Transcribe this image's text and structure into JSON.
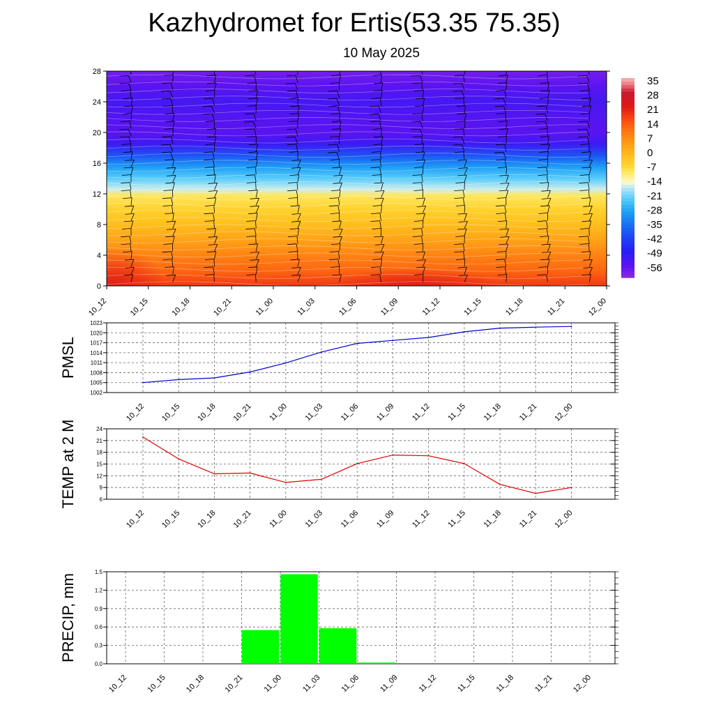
{
  "title": "Kazhydromet for Ertis(53.35 75.35)",
  "subtitle": "10 May 2025",
  "colors": {
    "pmsl_line": "#0000cc",
    "temp_line": "#dd0000",
    "precip_bar": "#00ff00",
    "grid": "#666666"
  },
  "chart_data": [
    {
      "type": "heatmap",
      "title": "",
      "xlabel": "",
      "ylabel": "",
      "x": [
        "10_12",
        "10_15",
        "10_18",
        "10_21",
        "11_00",
        "11_03",
        "11_06",
        "11_09",
        "11_12",
        "11_15",
        "11_18",
        "11_21",
        "12_00"
      ],
      "y_ticks": [
        0,
        4,
        8,
        12,
        16,
        20,
        24,
        28
      ],
      "ylim": [
        0,
        28
      ],
      "colorbar": {
        "labels": [
          "35",
          "28",
          "21",
          "14",
          "7",
          "0",
          "-7",
          "-14",
          "-21",
          "-28",
          "-35",
          "-42",
          "-49",
          "-56"
        ],
        "range": [
          -60,
          38
        ]
      },
      "overlay": "wind barbs",
      "temperature_profile": [
        {
          "level": 0,
          "value": 20
        },
        {
          "level": 2,
          "value": 14
        },
        {
          "level": 4,
          "value": 10
        },
        {
          "level": 6,
          "value": 5
        },
        {
          "level": 8,
          "value": 0
        },
        {
          "level": 10,
          "value": -4
        },
        {
          "level": 11.8,
          "value": -8
        },
        {
          "level": 12.6,
          "value": -15
        },
        {
          "level": 14,
          "value": -21
        },
        {
          "level": 15.5,
          "value": -28
        },
        {
          "level": 17,
          "value": -38
        },
        {
          "level": 18.5,
          "value": -50
        },
        {
          "level": 20,
          "value": -54
        },
        {
          "level": 22,
          "value": -53
        },
        {
          "level": 24,
          "value": -51
        },
        {
          "level": 26,
          "value": -54
        },
        {
          "level": 28,
          "value": -57
        }
      ]
    },
    {
      "type": "line",
      "title": "",
      "xlabel": "",
      "ylabel": "PMSL",
      "categories": [
        "10_12",
        "10_15",
        "10_18",
        "10_21",
        "11_00",
        "11_03",
        "11_06",
        "11_09",
        "11_12",
        "11_15",
        "11_18",
        "11_21",
        "12_00"
      ],
      "y_ticks": [
        1002,
        1005,
        1008,
        1011,
        1014,
        1017,
        1020,
        1023
      ],
      "ylim": [
        1002,
        1023
      ],
      "grid": true,
      "series": [
        {
          "values": [
            1005.0,
            1005.9,
            1006.4,
            1008.2,
            1010.9,
            1014.2,
            1016.8,
            1017.7,
            1018.6,
            1020.3,
            1021.4,
            1021.7,
            1021.9
          ]
        }
      ]
    },
    {
      "type": "line",
      "title": "",
      "xlabel": "",
      "ylabel": "TEMP at 2 M",
      "categories": [
        "10_12",
        "10_15",
        "10_18",
        "10_21",
        "11_00",
        "11_03",
        "11_06",
        "11_09",
        "11_12",
        "11_15",
        "11_18",
        "11_21",
        "12_00"
      ],
      "y_ticks": [
        6,
        9,
        12,
        15,
        18,
        21,
        24
      ],
      "ylim": [
        6,
        24
      ],
      "grid": true,
      "series": [
        {
          "values": [
            21.9,
            16.3,
            12.5,
            12.7,
            10.3,
            11.1,
            15.1,
            17.3,
            17.1,
            15.1,
            9.8,
            7.5,
            9.0
          ]
        }
      ]
    },
    {
      "type": "bar",
      "title": "",
      "xlabel": "",
      "ylabel": "PRECIP, mm",
      "categories": [
        "10_12",
        "10_15",
        "10_18",
        "10_21",
        "11_00",
        "11_03",
        "11_06",
        "11_09",
        "11_12",
        "11_15",
        "11_18",
        "11_21",
        "12_00"
      ],
      "y_ticks": [
        "0.0",
        "0.3",
        "0.6",
        "0.9",
        "1.2",
        "1.5"
      ],
      "ylim": [
        0,
        1.5
      ],
      "grid": true,
      "series": [
        {
          "values": [
            0,
            0,
            0,
            0.55,
            1.46,
            0.58,
            0.02,
            0,
            0,
            0,
            0,
            0,
            0
          ]
        }
      ]
    }
  ]
}
